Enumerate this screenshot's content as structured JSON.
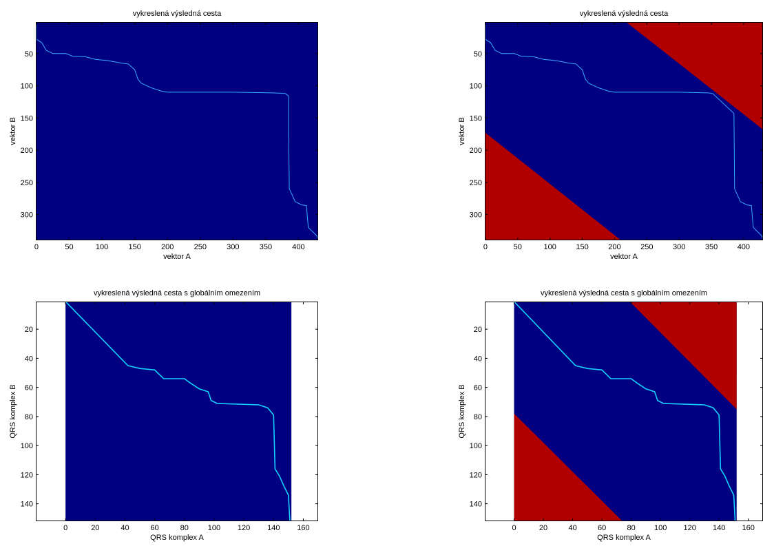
{
  "colors": {
    "background_region": "#000080",
    "band_region": "#0a0a80",
    "constraint_region": "#b00000",
    "path": "#3aa9ff",
    "path_bright": "#14d2ff"
  },
  "chart_data": [
    {
      "type": "heatmap",
      "title": "vykreslená výsledná cesta",
      "xlabel": "vektor A",
      "ylabel": "vektor B",
      "xlim": [
        -1,
        430
      ],
      "ylim": [
        340,
        1
      ],
      "xticks": [
        0,
        50,
        100,
        150,
        200,
        250,
        300,
        350,
        400
      ],
      "yticks": [
        50,
        100,
        150,
        200,
        250,
        300
      ],
      "regions": {
        "matrix_x": [
          0,
          430
        ],
        "matrix_y": [
          1,
          340
        ],
        "global_constraint": false
      },
      "path": [
        [
          0,
          1
        ],
        [
          0,
          28
        ],
        [
          8,
          33
        ],
        [
          15,
          45
        ],
        [
          25,
          50
        ],
        [
          45,
          50
        ],
        [
          55,
          54
        ],
        [
          75,
          55
        ],
        [
          90,
          59
        ],
        [
          110,
          61
        ],
        [
          130,
          65
        ],
        [
          140,
          66
        ],
        [
          150,
          75
        ],
        [
          155,
          90
        ],
        [
          160,
          96
        ],
        [
          175,
          103
        ],
        [
          190,
          108
        ],
        [
          200,
          110
        ],
        [
          300,
          110
        ],
        [
          360,
          111
        ],
        [
          380,
          112
        ],
        [
          385,
          116
        ],
        [
          385,
          175
        ],
        [
          386,
          260
        ],
        [
          395,
          280
        ],
        [
          405,
          285
        ],
        [
          412,
          286
        ],
        [
          415,
          320
        ],
        [
          428,
          333
        ],
        [
          430,
          340
        ]
      ]
    },
    {
      "type": "heatmap",
      "title": "vykreslená výsledná cesta",
      "xlabel": "vektor A",
      "ylabel": "vektor B",
      "xlim": [
        -1,
        430
      ],
      "ylim": [
        340,
        1
      ],
      "xticks": [
        0,
        50,
        100,
        150,
        200,
        250,
        300,
        350,
        400
      ],
      "yticks": [
        50,
        100,
        150,
        200,
        250,
        300
      ],
      "regions": {
        "matrix_x": [
          0,
          430
        ],
        "matrix_y": [
          1,
          340
        ],
        "global_constraint": true,
        "upper_line": [
          [
            218,
            1
          ],
          [
            430,
            168
          ]
        ],
        "lower_line": [
          [
            0,
            173
          ],
          [
            210,
            340
          ]
        ]
      },
      "path": [
        [
          0,
          1
        ],
        [
          0,
          28
        ],
        [
          8,
          33
        ],
        [
          15,
          45
        ],
        [
          25,
          50
        ],
        [
          45,
          50
        ],
        [
          55,
          54
        ],
        [
          75,
          55
        ],
        [
          90,
          59
        ],
        [
          110,
          61
        ],
        [
          130,
          65
        ],
        [
          140,
          66
        ],
        [
          150,
          75
        ],
        [
          155,
          90
        ],
        [
          160,
          96
        ],
        [
          175,
          103
        ],
        [
          190,
          108
        ],
        [
          200,
          110
        ],
        [
          300,
          110
        ],
        [
          345,
          111
        ],
        [
          352,
          112
        ],
        [
          385,
          143
        ],
        [
          386,
          260
        ],
        [
          395,
          280
        ],
        [
          405,
          285
        ],
        [
          412,
          286
        ],
        [
          415,
          320
        ],
        [
          428,
          333
        ],
        [
          430,
          340
        ]
      ]
    },
    {
      "type": "heatmap",
      "title": "vykreslená výsledná cesta s globálním omezením",
      "xlabel": "QRS komplex A",
      "ylabel": "QRS komplex B",
      "xlim": [
        -20,
        170
      ],
      "ylim": [
        152,
        1
      ],
      "xticks": [
        0,
        20,
        40,
        60,
        80,
        100,
        120,
        140,
        160
      ],
      "yticks": [
        20,
        40,
        60,
        80,
        100,
        120,
        140
      ],
      "regions": {
        "matrix_x": [
          0,
          152
        ],
        "matrix_y": [
          1,
          152
        ],
        "global_constraint": false
      },
      "path": [
        [
          0,
          1
        ],
        [
          42,
          45
        ],
        [
          50,
          47
        ],
        [
          60,
          48
        ],
        [
          64,
          52
        ],
        [
          66,
          54
        ],
        [
          80,
          54
        ],
        [
          84,
          57
        ],
        [
          90,
          61
        ],
        [
          96,
          63
        ],
        [
          98,
          69
        ],
        [
          102,
          71
        ],
        [
          130,
          72
        ],
        [
          136,
          74
        ],
        [
          140,
          79
        ],
        [
          141,
          116
        ],
        [
          144,
          121
        ],
        [
          147,
          128
        ],
        [
          150,
          134
        ],
        [
          151,
          152
        ]
      ]
    },
    {
      "type": "heatmap",
      "title": "vykreslená výsledná cesta s globálním omezením",
      "xlabel": "QRS komplex A",
      "ylabel": "QRS komplex B",
      "xlim": [
        -20,
        170
      ],
      "ylim": [
        152,
        1
      ],
      "xticks": [
        0,
        20,
        40,
        60,
        80,
        100,
        120,
        140,
        160
      ],
      "yticks": [
        20,
        40,
        60,
        80,
        100,
        120,
        140
      ],
      "regions": {
        "matrix_x": [
          0,
          152
        ],
        "matrix_y": [
          1,
          152
        ],
        "global_constraint": true,
        "upper_line": [
          [
            79,
            1
          ],
          [
            152,
            75
          ]
        ],
        "lower_line": [
          [
            0,
            78
          ],
          [
            74,
            152
          ]
        ]
      },
      "path": [
        [
          0,
          1
        ],
        [
          42,
          45
        ],
        [
          50,
          47
        ],
        [
          60,
          48
        ],
        [
          64,
          52
        ],
        [
          66,
          54
        ],
        [
          80,
          54
        ],
        [
          84,
          57
        ],
        [
          90,
          61
        ],
        [
          96,
          63
        ],
        [
          98,
          69
        ],
        [
          102,
          71
        ],
        [
          130,
          72
        ],
        [
          136,
          74
        ],
        [
          140,
          79
        ],
        [
          141,
          116
        ],
        [
          144,
          121
        ],
        [
          147,
          128
        ],
        [
          150,
          134
        ],
        [
          151,
          152
        ]
      ]
    }
  ]
}
